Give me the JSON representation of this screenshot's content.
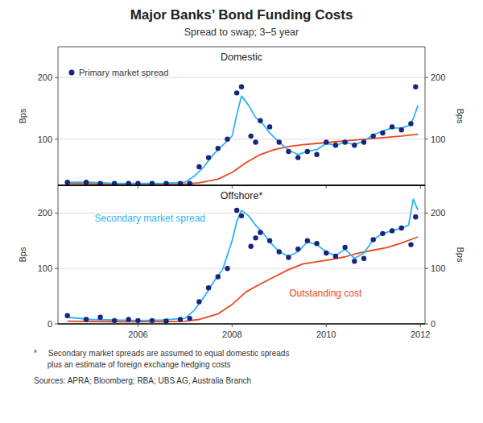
{
  "chart_data": [
    {
      "type": "line",
      "title": "Major Banks’ Bond Funding Costs",
      "subtitle": "Spread to swap; 3–5 year",
      "annotations": [
        "Domestic"
      ],
      "ylabel": "Bps",
      "y2label": "Bps",
      "xlim": [
        2004.3,
        2012.1
      ],
      "xticks": [
        2006,
        2008,
        2010,
        2012
      ],
      "ylim": [
        25,
        250
      ],
      "yticks": [
        100,
        200
      ],
      "y2lim": [
        25,
        250
      ],
      "y2ticks": [
        100,
        200
      ],
      "grid": true,
      "legend": "upper left",
      "tick_labels": "y",
      "series": [
        {
          "name": "Primary market spread",
          "type": "scatter",
          "marker": "circle",
          "color": "#1a237e",
          "x": [
            2004.5,
            2004.9,
            2005.2,
            2005.5,
            2005.8,
            2006.0,
            2006.3,
            2006.6,
            2006.9,
            2007.1,
            2007.3,
            2007.5,
            2007.7,
            2007.9,
            2008.1,
            2008.2,
            2008.4,
            2008.5,
            2008.6,
            2008.8,
            2009.0,
            2009.2,
            2009.4,
            2009.6,
            2009.8,
            2010.0,
            2010.2,
            2010.4,
            2010.6,
            2010.8,
            2011.0,
            2011.2,
            2011.4,
            2011.6,
            2011.8,
            2011.9
          ],
          "values": [
            30,
            30,
            28,
            28,
            28,
            28,
            28,
            28,
            28,
            28,
            55,
            70,
            85,
            100,
            175,
            185,
            105,
            95,
            130,
            120,
            95,
            80,
            70,
            80,
            75,
            95,
            90,
            95,
            90,
            95,
            105,
            110,
            120,
            115,
            125,
            185
          ]
        },
        {
          "type": "line",
          "color": "#29b6f6",
          "x": [
            2004.5,
            2005.0,
            2005.5,
            2006.0,
            2006.5,
            2007.0,
            2007.2,
            2007.4,
            2007.6,
            2007.8,
            2008.0,
            2008.1,
            2008.2,
            2008.35,
            2008.5,
            2008.65,
            2008.8,
            2009.0,
            2009.2,
            2009.4,
            2009.6,
            2009.8,
            2010.0,
            2010.2,
            2010.4,
            2010.6,
            2010.8,
            2011.0,
            2011.2,
            2011.4,
            2011.6,
            2011.75,
            2011.85,
            2011.95
          ],
          "values": [
            30,
            30,
            28,
            28,
            28,
            30,
            40,
            55,
            75,
            90,
            105,
            140,
            170,
            155,
            135,
            125,
            110,
            95,
            82,
            75,
            80,
            83,
            93,
            90,
            95,
            91,
            97,
            107,
            113,
            118,
            118,
            122,
            133,
            155
          ]
        },
        {
          "type": "line",
          "color": "#e8491e",
          "x": [
            2004.5,
            2005.5,
            2006.5,
            2007.0,
            2007.3,
            2007.7,
            2008.0,
            2008.3,
            2008.6,
            2008.9,
            2009.2,
            2009.5,
            2009.8,
            2010.1,
            2010.4,
            2010.7,
            2011.0,
            2011.3,
            2011.6,
            2011.95
          ],
          "values": [
            28,
            27,
            27,
            27,
            29,
            35,
            46,
            62,
            75,
            83,
            88,
            91,
            93,
            95,
            97,
            99,
            101,
            103,
            105,
            108
          ]
        }
      ]
    },
    {
      "type": "line",
      "annotations": [
        "Offshore*",
        "Secondary market spread",
        "Outstanding cost",
        "*     Secondary market spreads are assumed to equal domestic spreads",
        "      plus an estimate of foreign exchange hedging costs",
        "Sources: APRA; Bloomberg; RBA; UBS AG, Australia Branch"
      ],
      "ylabel": "Bps",
      "y2label": "Bps",
      "xlim": [
        2004.3,
        2012.1
      ],
      "xticks": [
        2006,
        2008,
        2010,
        2012
      ],
      "ylim": [
        0,
        250
      ],
      "yticks": [
        0,
        100,
        200
      ],
      "y2lim": [
        0,
        250
      ],
      "y2ticks": [
        0,
        100,
        200
      ],
      "grid": true,
      "series": [
        {
          "type": "scatter",
          "marker": "circle",
          "color": "#1a237e",
          "x": [
            2004.5,
            2004.9,
            2005.2,
            2005.5,
            2005.8,
            2006.0,
            2006.3,
            2006.6,
            2006.9,
            2007.1,
            2007.3,
            2007.5,
            2007.7,
            2007.9,
            2008.1,
            2008.2,
            2008.4,
            2008.5,
            2008.6,
            2008.8,
            2009.0,
            2009.2,
            2009.4,
            2009.6,
            2009.8,
            2010.0,
            2010.2,
            2010.4,
            2010.6,
            2010.8,
            2011.0,
            2011.2,
            2011.4,
            2011.6,
            2011.8,
            2011.9
          ],
          "values": [
            15,
            8,
            12,
            6,
            8,
            6,
            6,
            5,
            8,
            10,
            40,
            65,
            85,
            100,
            205,
            195,
            140,
            155,
            165,
            150,
            130,
            120,
            135,
            150,
            145,
            128,
            122,
            138,
            113,
            118,
            152,
            163,
            168,
            173,
            143,
            193
          ]
        },
        {
          "type": "line",
          "color": "#29b6f6",
          "x": [
            2004.5,
            2005.0,
            2005.5,
            2006.0,
            2006.5,
            2007.0,
            2007.2,
            2007.4,
            2007.6,
            2007.8,
            2008.0,
            2008.1,
            2008.2,
            2008.35,
            2008.5,
            2008.65,
            2008.8,
            2009.0,
            2009.2,
            2009.4,
            2009.6,
            2009.8,
            2010.0,
            2010.2,
            2010.4,
            2010.6,
            2010.8,
            2011.0,
            2011.2,
            2011.4,
            2011.6,
            2011.75,
            2011.85,
            2011.95
          ],
          "values": [
            12,
            8,
            7,
            6,
            7,
            10,
            25,
            48,
            75,
            98,
            150,
            185,
            205,
            195,
            178,
            165,
            148,
            130,
            122,
            130,
            148,
            143,
            130,
            123,
            135,
            118,
            128,
            152,
            163,
            168,
            173,
            178,
            225,
            205
          ]
        },
        {
          "type": "line",
          "color": "#e8491e",
          "x": [
            2004.5,
            2005.5,
            2006.5,
            2007.0,
            2007.3,
            2007.7,
            2008.0,
            2008.3,
            2008.6,
            2008.9,
            2009.2,
            2009.5,
            2009.8,
            2010.1,
            2010.4,
            2010.7,
            2011.0,
            2011.3,
            2011.6,
            2011.95
          ],
          "values": [
            5,
            4,
            4,
            5,
            8,
            18,
            35,
            58,
            72,
            85,
            98,
            108,
            112,
            116,
            121,
            128,
            133,
            138,
            146,
            157
          ]
        }
      ]
    }
  ]
}
